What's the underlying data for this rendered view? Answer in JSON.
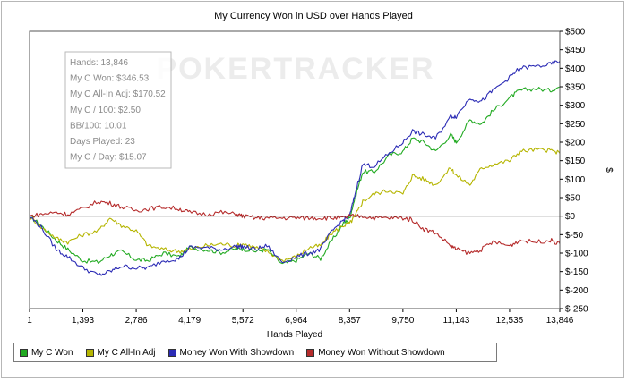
{
  "chart_data": {
    "type": "line",
    "title": "My Currency Won in USD over Hands Played",
    "xlabel": "Hands Played",
    "ylabel": "$",
    "xlim": [
      1,
      13846
    ],
    "ylim": [
      -250,
      500
    ],
    "x_ticks": [
      1,
      1393,
      2786,
      4179,
      5572,
      6964,
      8357,
      9750,
      11143,
      12535,
      13846
    ],
    "x_tick_labels": [
      "1",
      "1,393",
      "2,786",
      "4,179",
      "5,572",
      "6,964",
      "8,357",
      "9,750",
      "11,143",
      "12,535",
      "13,846"
    ],
    "y_ticks": [
      -250,
      -200,
      -150,
      -100,
      -50,
      0,
      50,
      100,
      150,
      200,
      250,
      300,
      350,
      400,
      450,
      500
    ],
    "y_tick_labels": [
      "$-250",
      "$-200",
      "$-150",
      "$-100",
      "$-50",
      "$0",
      "$50",
      "$100",
      "$150",
      "$200",
      "$250",
      "$300",
      "$350",
      "$400",
      "$450",
      "$500"
    ],
    "grid": false,
    "watermark": "POKERTRACKER",
    "stats_box": [
      "Hands: 13,846",
      "My C Won: $346.53",
      "My C All-In Adj: $170.52",
      "My C / 100: $2.50",
      "BB/100: 10.01",
      "Days Played: 23",
      "My C / Day: $15.07"
    ],
    "series": [
      {
        "name": "My C Won",
        "color": "#22aa22",
        "points": [
          [
            1,
            0
          ],
          [
            300,
            -25
          ],
          [
            700,
            -65
          ],
          [
            1000,
            -90
          ],
          [
            1393,
            -120
          ],
          [
            1800,
            -125
          ],
          [
            2100,
            -105
          ],
          [
            2400,
            -95
          ],
          [
            2786,
            -118
          ],
          [
            3100,
            -120
          ],
          [
            3500,
            -100
          ],
          [
            3900,
            -110
          ],
          [
            4179,
            -85
          ],
          [
            4600,
            -90
          ],
          [
            5000,
            -98
          ],
          [
            5400,
            -88
          ],
          [
            5572,
            -88
          ],
          [
            5900,
            -95
          ],
          [
            6200,
            -90
          ],
          [
            6600,
            -130
          ],
          [
            6964,
            -120
          ],
          [
            7300,
            -100
          ],
          [
            7600,
            -115
          ],
          [
            7900,
            -65
          ],
          [
            8200,
            -20
          ],
          [
            8357,
            -5
          ],
          [
            8500,
            50
          ],
          [
            8700,
            120
          ],
          [
            9000,
            120
          ],
          [
            9400,
            165
          ],
          [
            9750,
            175
          ],
          [
            10000,
            210
          ],
          [
            10300,
            200
          ],
          [
            10600,
            175
          ],
          [
            11000,
            220
          ],
          [
            11143,
            200
          ],
          [
            11500,
            260
          ],
          [
            11800,
            250
          ],
          [
            12100,
            285
          ],
          [
            12535,
            320
          ],
          [
            12800,
            340
          ],
          [
            13200,
            345
          ],
          [
            13600,
            340
          ],
          [
            13846,
            350
          ]
        ]
      },
      {
        "name": "My C All-In Adj",
        "color": "#b5b500",
        "points": [
          [
            1,
            0
          ],
          [
            300,
            -30
          ],
          [
            700,
            -60
          ],
          [
            1000,
            -70
          ],
          [
            1393,
            -50
          ],
          [
            1800,
            -40
          ],
          [
            2100,
            -5
          ],
          [
            2400,
            -25
          ],
          [
            2786,
            -40
          ],
          [
            3100,
            -80
          ],
          [
            3500,
            -90
          ],
          [
            3900,
            -95
          ],
          [
            4179,
            -90
          ],
          [
            4600,
            -80
          ],
          [
            5000,
            -75
          ],
          [
            5400,
            -80
          ],
          [
            5572,
            -75
          ],
          [
            5900,
            -85
          ],
          [
            6200,
            -95
          ],
          [
            6600,
            -120
          ],
          [
            6964,
            -110
          ],
          [
            7300,
            -85
          ],
          [
            7600,
            -80
          ],
          [
            7900,
            -45
          ],
          [
            8200,
            -25
          ],
          [
            8357,
            -20
          ],
          [
            8500,
            0
          ],
          [
            8700,
            40
          ],
          [
            9000,
            60
          ],
          [
            9400,
            70
          ],
          [
            9750,
            60
          ],
          [
            10000,
            110
          ],
          [
            10300,
            100
          ],
          [
            10600,
            85
          ],
          [
            11000,
            130
          ],
          [
            11143,
            110
          ],
          [
            11500,
            85
          ],
          [
            11800,
            130
          ],
          [
            12100,
            140
          ],
          [
            12535,
            150
          ],
          [
            12800,
            175
          ],
          [
            13200,
            180
          ],
          [
            13600,
            178
          ],
          [
            13846,
            170
          ]
        ]
      },
      {
        "name": "Money Won With Showdown",
        "color": "#2b2bb5",
        "points": [
          [
            1,
            0
          ],
          [
            300,
            -30
          ],
          [
            700,
            -90
          ],
          [
            1000,
            -110
          ],
          [
            1393,
            -140
          ],
          [
            1800,
            -160
          ],
          [
            2100,
            -150
          ],
          [
            2400,
            -135
          ],
          [
            2786,
            -140
          ],
          [
            3100,
            -140
          ],
          [
            3500,
            -120
          ],
          [
            3900,
            -115
          ],
          [
            4179,
            -85
          ],
          [
            4600,
            -85
          ],
          [
            5000,
            -90
          ],
          [
            5400,
            -82
          ],
          [
            5572,
            -82
          ],
          [
            5900,
            -90
          ],
          [
            6200,
            -80
          ],
          [
            6600,
            -125
          ],
          [
            6964,
            -110
          ],
          [
            7300,
            -100
          ],
          [
            7600,
            -90
          ],
          [
            7900,
            -40
          ],
          [
            8200,
            -10
          ],
          [
            8357,
            0
          ],
          [
            8500,
            60
          ],
          [
            8700,
            140
          ],
          [
            9000,
            135
          ],
          [
            9400,
            170
          ],
          [
            9750,
            200
          ],
          [
            10000,
            230
          ],
          [
            10300,
            220
          ],
          [
            10600,
            210
          ],
          [
            11000,
            270
          ],
          [
            11143,
            270
          ],
          [
            11500,
            320
          ],
          [
            11800,
            310
          ],
          [
            12100,
            340
          ],
          [
            12535,
            375
          ],
          [
            12800,
            400
          ],
          [
            13200,
            405
          ],
          [
            13600,
            410
          ],
          [
            13846,
            420
          ]
        ]
      },
      {
        "name": "Money Won Without Showdown",
        "color": "#b52b2b",
        "points": [
          [
            1,
            0
          ],
          [
            300,
            5
          ],
          [
            700,
            10
          ],
          [
            1000,
            5
          ],
          [
            1393,
            20
          ],
          [
            1800,
            40
          ],
          [
            2100,
            35
          ],
          [
            2400,
            25
          ],
          [
            2786,
            15
          ],
          [
            3100,
            20
          ],
          [
            3500,
            25
          ],
          [
            3900,
            20
          ],
          [
            4179,
            10
          ],
          [
            4600,
            5
          ],
          [
            5000,
            10
          ],
          [
            5400,
            5
          ],
          [
            5572,
            0
          ],
          [
            5900,
            -5
          ],
          [
            6200,
            -5
          ],
          [
            6600,
            -5
          ],
          [
            6964,
            -5
          ],
          [
            7300,
            -5
          ],
          [
            7600,
            -5
          ],
          [
            7900,
            -5
          ],
          [
            8200,
            -5
          ],
          [
            8357,
            0
          ],
          [
            8700,
            0
          ],
          [
            9000,
            -5
          ],
          [
            9400,
            -5
          ],
          [
            9750,
            -5
          ],
          [
            10000,
            -10
          ],
          [
            10300,
            -35
          ],
          [
            10600,
            -45
          ],
          [
            11000,
            -80
          ],
          [
            11143,
            -90
          ],
          [
            11500,
            -100
          ],
          [
            11800,
            -90
          ],
          [
            12100,
            -70
          ],
          [
            12535,
            -80
          ],
          [
            12800,
            -65
          ],
          [
            13200,
            -70
          ],
          [
            13600,
            -65
          ],
          [
            13846,
            -75
          ]
        ]
      }
    ]
  }
}
